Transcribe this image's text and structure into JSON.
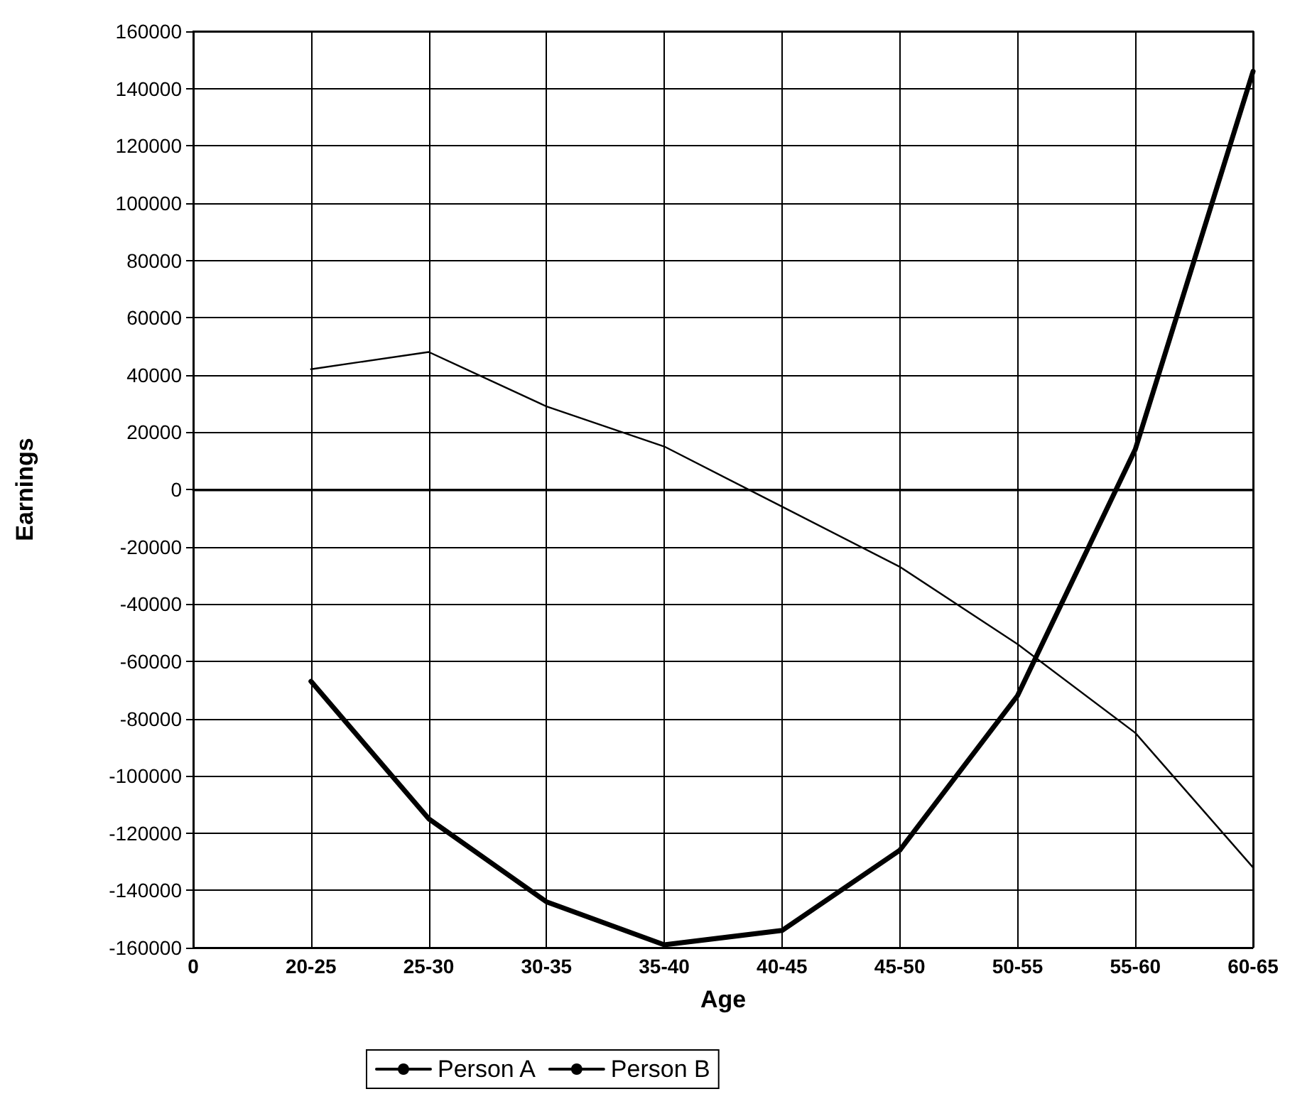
{
  "chart_data": {
    "type": "line",
    "xlabel": "Age",
    "ylabel": "Earnings",
    "categories": [
      "0",
      "20-25",
      "25-30",
      "30-35",
      "35-40",
      "40-45",
      "45-50",
      "50-55",
      "55-60",
      "60-65"
    ],
    "series": [
      {
        "name": "Person A",
        "color": "#000000",
        "values": [
          null,
          -67000,
          -115000,
          -144000,
          -159000,
          -154000,
          -126000,
          -72000,
          14000,
          146000
        ]
      },
      {
        "name": "Person B",
        "color": "#000000",
        "values": [
          null,
          42000,
          48000,
          29000,
          15000,
          -6000,
          -27000,
          -54000,
          -85000,
          -132000
        ]
      }
    ],
    "ylim": [
      -160000,
      160000
    ],
    "yticks": [
      -160000,
      -140000,
      -120000,
      -100000,
      -80000,
      -60000,
      -40000,
      -20000,
      0,
      20000,
      40000,
      60000,
      80000,
      100000,
      120000,
      140000,
      160000
    ],
    "grid": true,
    "legend": "bottom",
    "marker": "none",
    "line_style": "solid"
  }
}
